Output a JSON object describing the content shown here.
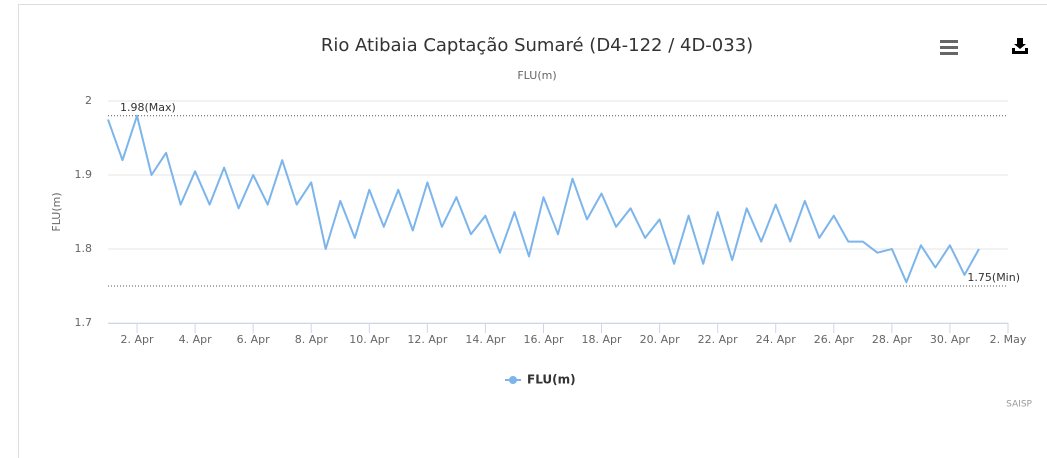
{
  "chart_data": {
    "type": "line",
    "title": "Rio Atibaia Captação Sumaré (D4-122 / 4D-033)",
    "subtitle": "FLU(m)",
    "y_label": "FLU(m)",
    "credits": "SAISP",
    "xlim": [
      1,
      32
    ],
    "xticks": [
      {
        "value": 2,
        "label": "2. Apr"
      },
      {
        "value": 4,
        "label": "4. Apr"
      },
      {
        "value": 6,
        "label": "6. Apr"
      },
      {
        "value": 8,
        "label": "8. Apr"
      },
      {
        "value": 10,
        "label": "10. Apr"
      },
      {
        "value": 12,
        "label": "12. Apr"
      },
      {
        "value": 14,
        "label": "14. Apr"
      },
      {
        "value": 16,
        "label": "16. Apr"
      },
      {
        "value": 18,
        "label": "18. Apr"
      },
      {
        "value": 20,
        "label": "20. Apr"
      },
      {
        "value": 22,
        "label": "22. Apr"
      },
      {
        "value": 24,
        "label": "24. Apr"
      },
      {
        "value": 26,
        "label": "26. Apr"
      },
      {
        "value": 28,
        "label": "28. Apr"
      },
      {
        "value": 30,
        "label": "30. Apr"
      },
      {
        "value": 32,
        "label": "2. May"
      }
    ],
    "ylim": [
      1.7,
      2
    ],
    "yticks": [
      1.7,
      1.8,
      1.9,
      2
    ],
    "grid": true,
    "plot_lines": [
      {
        "value": 1.98,
        "label": "1.98(Max)"
      },
      {
        "value": 1.75,
        "label": "1.75(Min)"
      }
    ],
    "x": [
      1,
      1.5,
      2,
      2.5,
      3,
      3.5,
      4,
      4.5,
      5,
      5.5,
      6,
      6.5,
      7,
      7.5,
      8,
      8.5,
      9,
      9.5,
      10,
      10.5,
      11,
      11.5,
      12,
      12.5,
      13,
      13.5,
      14,
      14.5,
      15,
      15.5,
      16,
      16.5,
      17,
      17.5,
      18,
      18.5,
      19,
      19.5,
      20,
      20.5,
      21,
      21.5,
      22,
      22.5,
      23,
      23.5,
      24,
      24.5,
      25,
      25.5,
      26,
      26.5,
      27,
      27.5,
      28,
      28.5,
      29,
      29.5,
      30,
      30.5,
      31
    ],
    "series": [
      {
        "name": "FLU(m)",
        "color": "#7cb5ec",
        "values": [
          1.975,
          1.92,
          1.98,
          1.9,
          1.93,
          1.86,
          1.905,
          1.86,
          1.91,
          1.855,
          1.9,
          1.86,
          1.92,
          1.86,
          1.89,
          1.8,
          1.865,
          1.815,
          1.88,
          1.83,
          1.88,
          1.825,
          1.89,
          1.83,
          1.87,
          1.82,
          1.845,
          1.795,
          1.85,
          1.79,
          1.87,
          1.82,
          1.895,
          1.84,
          1.875,
          1.83,
          1.855,
          1.815,
          1.84,
          1.78,
          1.845,
          1.78,
          1.85,
          1.785,
          1.855,
          1.81,
          1.86,
          1.81,
          1.865,
          1.815,
          1.845,
          1.81,
          1.81,
          1.795,
          1.8,
          1.755,
          1.805,
          1.775,
          1.805,
          1.765,
          1.8
        ]
      }
    ]
  }
}
